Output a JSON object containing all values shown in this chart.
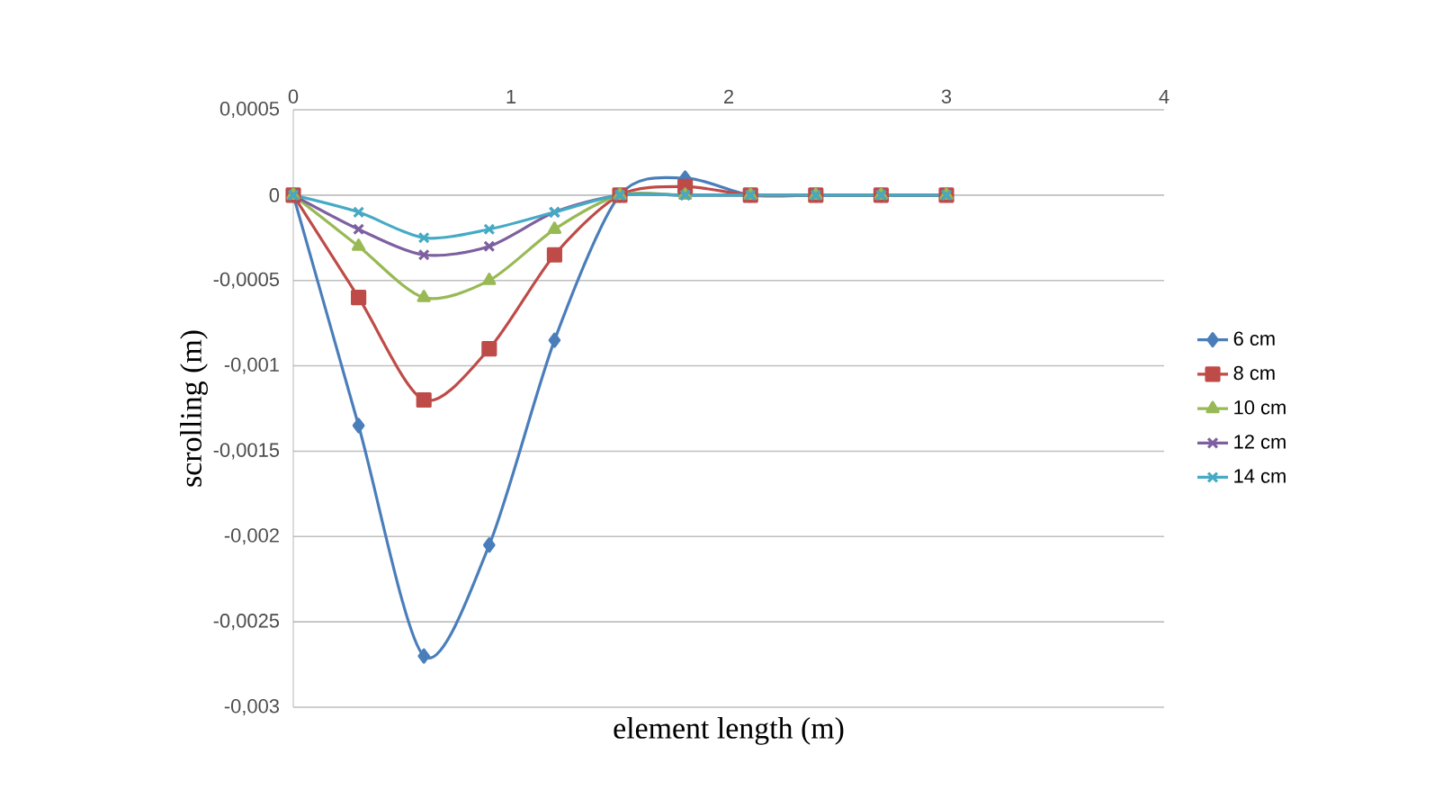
{
  "chart_data": {
    "type": "line",
    "xlabel": "element length (m)",
    "ylabel": "scrolling (m)",
    "x": [
      0,
      0.3,
      0.6,
      0.9,
      1.2,
      1.5,
      1.8,
      2.1,
      2.4,
      2.7,
      3.0
    ],
    "xlim": [
      0,
      4
    ],
    "xticks": [
      0,
      1,
      2,
      3,
      4
    ],
    "ylim": [
      -0.003,
      0.0005
    ],
    "yticks": [
      {
        "value": -0.003,
        "label": "-0,003"
      },
      {
        "value": -0.0025,
        "label": "-0,0025"
      },
      {
        "value": -0.002,
        "label": "-0,002"
      },
      {
        "value": -0.0015,
        "label": "-0,0015"
      },
      {
        "value": -0.001,
        "label": "-0,001"
      },
      {
        "value": -0.0005,
        "label": "-0,0005"
      },
      {
        "value": 0,
        "label": "0"
      },
      {
        "value": 0.0005,
        "label": "0,0005"
      }
    ],
    "grid": "y",
    "legend": "right",
    "line_style": "solid",
    "series": [
      {
        "name": "6 cm",
        "color": "#4a7ebb",
        "marker": "diamond",
        "values": [
          0,
          -0.00135,
          -0.0027,
          -0.00205,
          -0.00085,
          0,
          0.0001,
          0,
          0,
          0,
          0
        ]
      },
      {
        "name": "8 cm",
        "color": "#be4b48",
        "marker": "square",
        "values": [
          0,
          -0.0006,
          -0.0012,
          -0.0009,
          -0.00035,
          0,
          5e-05,
          0,
          0,
          0,
          0
        ]
      },
      {
        "name": "10 cm",
        "color": "#98b954",
        "marker": "triangle",
        "values": [
          0,
          -0.0003,
          -0.0006,
          -0.0005,
          -0.0002,
          0,
          0,
          0,
          0,
          0,
          0
        ]
      },
      {
        "name": "12 cm",
        "color": "#7d60a0",
        "marker": "cross",
        "values": [
          0,
          -0.0002,
          -0.00035,
          -0.0003,
          -0.0001,
          0,
          0,
          0,
          0,
          0,
          0
        ]
      },
      {
        "name": "14 cm",
        "color": "#46aac5",
        "marker": "cross",
        "values": [
          0,
          -0.0001,
          -0.00025,
          -0.0002,
          -0.0001,
          0,
          0,
          0,
          0,
          0,
          0
        ]
      }
    ]
  }
}
